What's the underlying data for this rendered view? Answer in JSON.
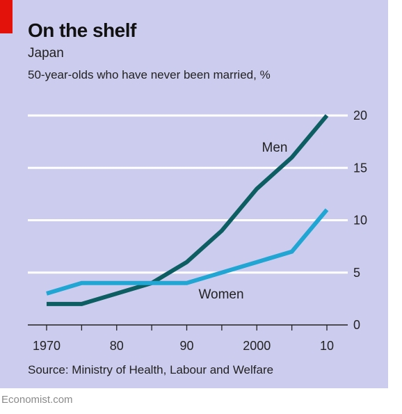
{
  "chart_data": {
    "type": "line",
    "title": "On the shelf",
    "subtitle": "Japan",
    "ylabel": "50-year-olds who have never been married, %",
    "source": "Source: Ministry of Health, Labour and Welfare",
    "credit": "Economist.com",
    "x_ticks": [
      1970,
      1980,
      1990,
      2000,
      2010
    ],
    "x_tick_labels": [
      "1970",
      "80",
      "90",
      "2000",
      "10"
    ],
    "y_ticks": [
      0,
      5,
      10,
      15,
      20
    ],
    "y_tick_labels": [
      "0",
      "5",
      "10",
      "15",
      "20"
    ],
    "ylim": [
      0,
      20
    ],
    "xlim": [
      1970,
      2010
    ],
    "grid": true,
    "series": [
      {
        "name": "Men",
        "color": "#0d5e63",
        "x": [
          1970,
          1975,
          1980,
          1985,
          1990,
          1995,
          2000,
          2005,
          2010
        ],
        "values": [
          2,
          2,
          3,
          4,
          6,
          9,
          13,
          16,
          20
        ]
      },
      {
        "name": "Women",
        "color": "#21a6d3",
        "x": [
          1970,
          1975,
          1980,
          1985,
          1990,
          1995,
          2000,
          2005,
          2010
        ],
        "values": [
          3,
          4,
          4,
          4,
          4,
          5,
          6,
          7,
          11
        ]
      }
    ]
  },
  "colors": {
    "background": "#ccccee",
    "accent": "#e3120b",
    "gridline": "#ffffff"
  }
}
